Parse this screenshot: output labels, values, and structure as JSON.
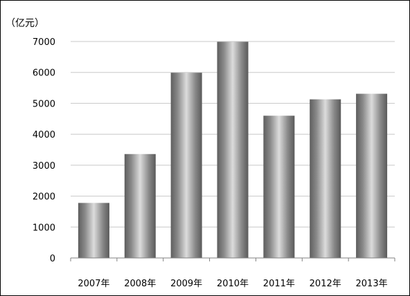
{
  "chart_data": {
    "type": "bar",
    "unit_label": "（亿元）",
    "categories": [
      "2007年",
      "2008年",
      "2009年",
      "2010年",
      "2011年",
      "2012年",
      "2013年"
    ],
    "values": [
      1780,
      3360,
      5990,
      6990,
      4600,
      5130,
      5310
    ],
    "ylim": [
      0,
      7000
    ],
    "yticks": [
      "0",
      "1000",
      "2000",
      "3000",
      "4000",
      "5000",
      "6000",
      "7000"
    ],
    "grid": true,
    "legend": false
  }
}
